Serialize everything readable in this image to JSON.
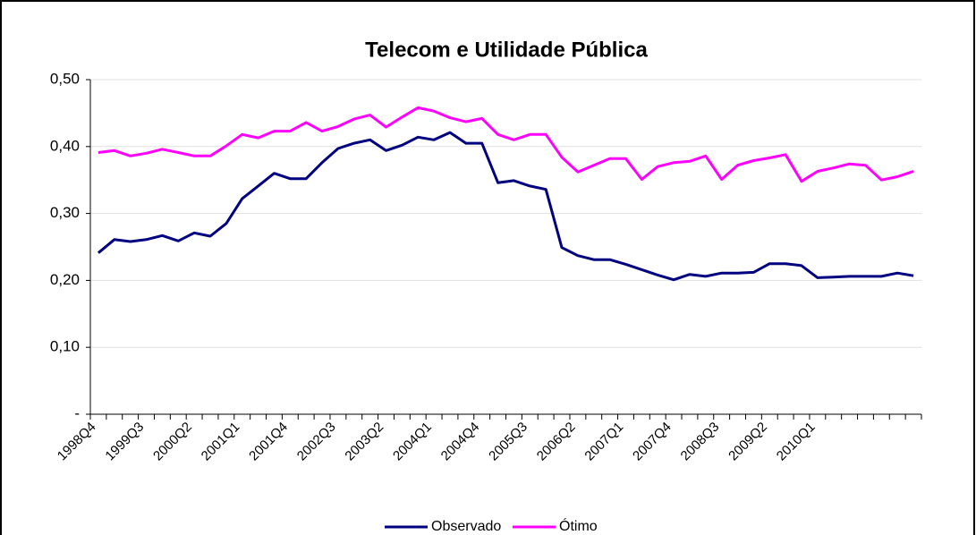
{
  "chart_data": {
    "type": "line",
    "title": "Telecom e Utilidade Pública",
    "categories": [
      "1998Q4",
      null,
      null,
      "1999Q3",
      null,
      null,
      "2000Q2",
      null,
      null,
      "2001Q1",
      null,
      null,
      "2001Q4",
      null,
      null,
      "2002Q3",
      null,
      null,
      "2003Q2",
      null,
      null,
      "2004Q1",
      null,
      null,
      "2004Q4",
      null,
      null,
      "2005Q3",
      null,
      null,
      "2006Q2",
      null,
      null,
      "2007Q1",
      null,
      null,
      "2007Q4",
      null,
      null,
      "2008Q3",
      null,
      null,
      "2009Q2",
      null,
      null,
      "2010Q1",
      null,
      null,
      null,
      null,
      null,
      null
    ],
    "series": [
      {
        "name": "Observado",
        "color": "#000080",
        "values": [
          0.241,
          0.261,
          0.258,
          0.261,
          0.267,
          0.259,
          0.271,
          0.266,
          0.285,
          0.322,
          0.341,
          0.36,
          0.352,
          0.352,
          0.376,
          0.397,
          0.405,
          0.41,
          0.394,
          0.402,
          0.414,
          0.41,
          0.421,
          0.405,
          0.405,
          0.346,
          0.349,
          0.341,
          0.336,
          0.249,
          0.237,
          0.231,
          0.231,
          0.224,
          0.216,
          0.208,
          0.201,
          0.209,
          0.206,
          0.211,
          0.211,
          0.212,
          0.225,
          0.225,
          0.222,
          0.204,
          0.205,
          0.206,
          0.206,
          0.206,
          0.211,
          0.207
        ]
      },
      {
        "name": "Ótimo",
        "color": "#ff00ff",
        "values": [
          0.391,
          0.394,
          0.386,
          0.39,
          0.396,
          0.391,
          0.386,
          0.386,
          0.401,
          0.418,
          0.413,
          0.423,
          0.423,
          0.436,
          0.423,
          0.43,
          0.441,
          0.447,
          0.429,
          0.444,
          0.458,
          0.453,
          0.443,
          0.437,
          0.442,
          0.418,
          0.41,
          0.418,
          0.418,
          0.384,
          0.362,
          0.372,
          0.382,
          0.382,
          0.351,
          0.37,
          0.376,
          0.378,
          0.386,
          0.351,
          0.372,
          0.379,
          0.383,
          0.388,
          0.348,
          0.363,
          0.368,
          0.374,
          0.372,
          0.35,
          0.355,
          0.363
        ]
      }
    ],
    "ylim": [
      0,
      0.5
    ],
    "yticks": [
      {
        "value": 0,
        "label": "-"
      },
      {
        "value": 0.1,
        "label": "0,10"
      },
      {
        "value": 0.2,
        "label": "0,20"
      },
      {
        "value": 0.3,
        "label": "0,30"
      },
      {
        "value": 0.4,
        "label": "0,40"
      },
      {
        "value": 0.5,
        "label": "0,50"
      }
    ],
    "grid": true
  }
}
